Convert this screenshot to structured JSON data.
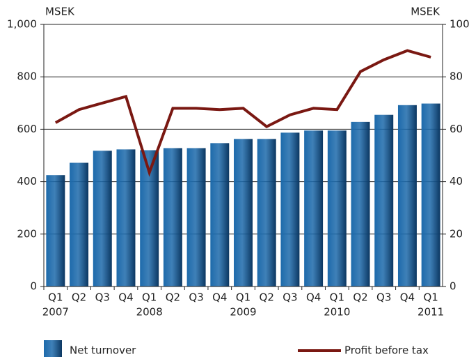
{
  "chart_data": {
    "type": "bar_line",
    "y_unit_label": "MSEK",
    "y2_unit_label": "MSEK",
    "categories": [
      "Q1",
      "Q2",
      "Q3",
      "Q4",
      "Q1",
      "Q2",
      "Q3",
      "Q4",
      "Q1",
      "Q2",
      "Q3",
      "Q4",
      "Q1",
      "Q2",
      "Q3",
      "Q4",
      "Q1"
    ],
    "category_groups": [
      "2007",
      null,
      null,
      null,
      "2008",
      null,
      null,
      null,
      "2009",
      null,
      null,
      null,
      "2010",
      null,
      null,
      null,
      "2011"
    ],
    "series": [
      {
        "name": "Net turnover",
        "type": "bar",
        "color": "#1d6aab",
        "values": [
          425,
          472,
          518,
          523,
          520,
          528,
          528,
          547,
          563,
          563,
          587,
          595,
          595,
          628,
          655,
          692,
          698
        ]
      },
      {
        "name": "Profit before tax",
        "type": "line",
        "axis": "y2",
        "color": "#7a1812",
        "values": [
          62.5,
          67.5,
          70,
          72.5,
          43.5,
          68,
          68,
          67.5,
          68,
          61,
          65.5,
          68,
          67.5,
          82,
          86.5,
          90,
          87.5
        ]
      }
    ],
    "ylim": [
      0,
      1000
    ],
    "yticks": [
      0,
      200,
      400,
      600,
      800,
      {
        "value": 1000,
        "label": "1,000"
      }
    ],
    "y2lim": [
      0,
      100
    ],
    "y2ticks": [
      0,
      20,
      40,
      60,
      80,
      100
    ],
    "grid": true
  }
}
